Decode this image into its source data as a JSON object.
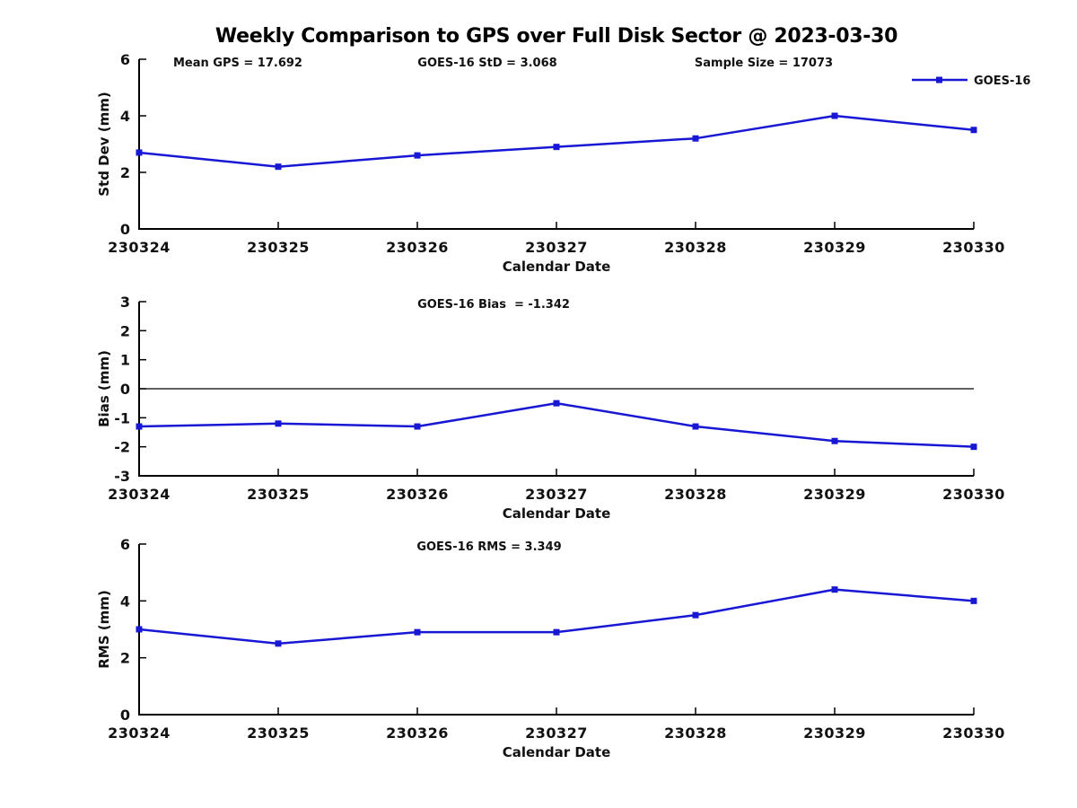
{
  "title": "Weekly Comparison to GPS over Full Disk Sector @ 2023-03-30",
  "colors": {
    "series": "#1717d4",
    "axis": "#000000"
  },
  "legend": {
    "label": "GOES-16",
    "position": "top-right"
  },
  "chart_data": [
    {
      "type": "line",
      "panel": "std-dev",
      "ylabel": "Std Dev (mm)",
      "xlabel": "Calendar Date",
      "ylim": [
        0,
        6
      ],
      "yticks": [
        6,
        4,
        2,
        0
      ],
      "grid": false,
      "annotations": [
        "Mean GPS = 17.692",
        "GOES-16 StD = 3.068",
        "Sample Size = 17073"
      ],
      "categories": [
        "230324",
        "230325",
        "230326",
        "230327",
        "230328",
        "230329",
        "230330"
      ],
      "series": [
        {
          "name": "GOES-16",
          "values": [
            2.7,
            2.2,
            2.6,
            2.9,
            3.2,
            4.0,
            3.5
          ]
        }
      ]
    },
    {
      "type": "line",
      "panel": "bias",
      "ylabel": "Bias (mm)",
      "xlabel": "Calendar Date",
      "ylim": [
        -3,
        3
      ],
      "yticks": [
        3,
        2,
        1,
        0,
        -1,
        -2,
        -3
      ],
      "grid": false,
      "zero_line": true,
      "annotations": [
        "GOES-16 Bias  = -1.342"
      ],
      "categories": [
        "230324",
        "230325",
        "230326",
        "230327",
        "230328",
        "230329",
        "230330"
      ],
      "series": [
        {
          "name": "GOES-16",
          "values": [
            -1.3,
            -1.2,
            -1.3,
            -0.5,
            -1.3,
            -1.8,
            -2.0
          ]
        }
      ]
    },
    {
      "type": "line",
      "panel": "rms",
      "ylabel": "RMS (mm)",
      "xlabel": "Calendar Date",
      "ylim": [
        0,
        6
      ],
      "yticks": [
        6,
        4,
        2,
        0
      ],
      "grid": false,
      "annotations": [
        "GOES-16 RMS = 3.349"
      ],
      "categories": [
        "230324",
        "230325",
        "230326",
        "230327",
        "230328",
        "230329",
        "230330"
      ],
      "series": [
        {
          "name": "GOES-16",
          "values": [
            3.0,
            2.5,
            2.9,
            2.9,
            3.5,
            4.4,
            4.0
          ]
        }
      ]
    }
  ]
}
